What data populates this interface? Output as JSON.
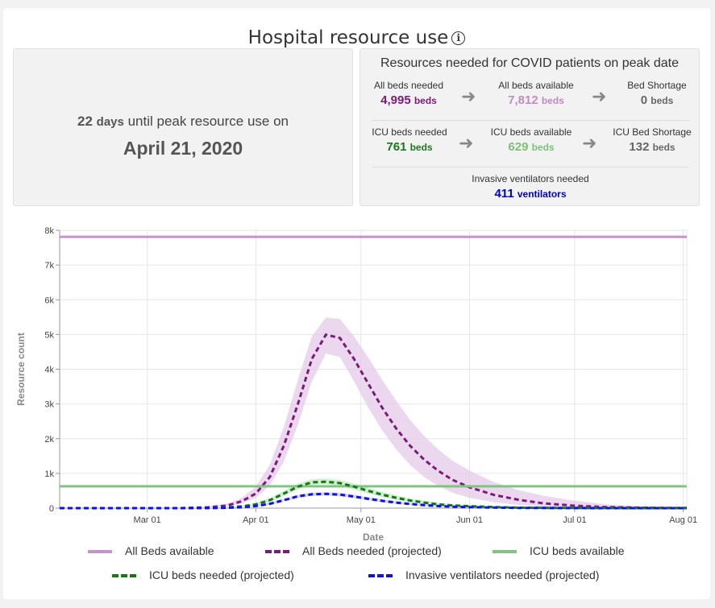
{
  "header": {
    "title": "Hospital resource use",
    "info_icon": "info-icon"
  },
  "peak": {
    "days": "22",
    "days_label": "days",
    "line_text": "until peak resource use on",
    "date": "April 21, 2020"
  },
  "resources": {
    "title": "Resources needed for COVID patients on peak date",
    "all_beds_needed": {
      "label": "All beds needed",
      "value": "4,995",
      "unit": "beds",
      "color": "#7b1a7b"
    },
    "all_beds_available": {
      "label": "All beds available",
      "value": "7,812",
      "unit": "beds",
      "color": "#c08bc4"
    },
    "bed_shortage": {
      "label": "Bed Shortage",
      "value": "0",
      "unit": "beds",
      "color": "#666666"
    },
    "icu_beds_needed": {
      "label": "ICU beds needed",
      "value": "761",
      "unit": "beds",
      "color": "#1a7a1a"
    },
    "icu_beds_available": {
      "label": "ICU beds available",
      "value": "629",
      "unit": "beds",
      "color": "#7cc07c"
    },
    "icu_bed_shortage": {
      "label": "ICU Bed Shortage",
      "value": "132",
      "unit": "beds",
      "color": "#666666"
    },
    "ventilators_needed": {
      "label": "Invasive ventilators needed",
      "value": "411",
      "unit": "ventilators",
      "color": "#0000cc"
    }
  },
  "chart_data": {
    "type": "line",
    "xlabel": "Date",
    "ylabel": "Resource count",
    "xlim": [
      "2020-02-05",
      "2020-08-02"
    ],
    "ylim": [
      0,
      8000
    ],
    "grid": true,
    "legend_position": "bottom",
    "x_ticks": [
      {
        "label": "Mar 01",
        "date": "2020-03-01"
      },
      {
        "label": "Apr 01",
        "date": "2020-04-01"
      },
      {
        "label": "May 01",
        "date": "2020-05-01"
      },
      {
        "label": "Jun 01",
        "date": "2020-06-01"
      },
      {
        "label": "Jul 01",
        "date": "2020-07-01"
      },
      {
        "label": "Aug 01",
        "date": "2020-08-01"
      }
    ],
    "y_ticks": [
      {
        "label": "0",
        "value": 0
      },
      {
        "label": "1k",
        "value": 1000
      },
      {
        "label": "2k",
        "value": 2000
      },
      {
        "label": "3k",
        "value": 3000
      },
      {
        "label": "4k",
        "value": 4000
      },
      {
        "label": "5k",
        "value": 5000
      },
      {
        "label": "6k",
        "value": 6000
      },
      {
        "label": "7k",
        "value": 7000
      },
      {
        "label": "8k",
        "value": 8000
      }
    ],
    "series": [
      {
        "name": "All Beds available",
        "style": "solid",
        "color": "#c98fd0",
        "x": [
          "2020-02-05",
          "2020-08-02"
        ],
        "y": [
          7812,
          7812
        ]
      },
      {
        "name": "All Beds needed (projected)",
        "style": "dashed",
        "color": "#7b1a7b",
        "band_color": "#e5cbe8",
        "x": [
          "2020-02-05",
          "2020-03-10",
          "2020-03-18",
          "2020-03-24",
          "2020-03-28",
          "2020-04-01",
          "2020-04-05",
          "2020-04-09",
          "2020-04-13",
          "2020-04-17",
          "2020-04-21",
          "2020-04-25",
          "2020-04-29",
          "2020-05-03",
          "2020-05-07",
          "2020-05-11",
          "2020-05-15",
          "2020-05-19",
          "2020-05-23",
          "2020-05-27",
          "2020-06-01",
          "2020-06-08",
          "2020-06-15",
          "2020-06-22",
          "2020-07-01",
          "2020-07-10",
          "2020-07-20",
          "2020-08-02"
        ],
        "y": [
          0,
          0,
          20,
          80,
          200,
          420,
          900,
          1800,
          3000,
          4300,
          4995,
          4900,
          4300,
          3600,
          2900,
          2300,
          1800,
          1400,
          1080,
          820,
          600,
          380,
          240,
          140,
          70,
          30,
          12,
          5
        ],
        "lower": [
          0,
          0,
          10,
          50,
          130,
          300,
          650,
          1350,
          2400,
          3650,
          4450,
          4350,
          3650,
          2900,
          2250,
          1700,
          1250,
          900,
          650,
          450,
          300,
          170,
          90,
          45,
          20,
          8,
          3,
          1
        ],
        "upper": [
          0,
          0,
          40,
          130,
          300,
          620,
          1250,
          2350,
          3700,
          4950,
          5490,
          5450,
          4950,
          4350,
          3700,
          3100,
          2550,
          2080,
          1700,
          1370,
          1080,
          750,
          520,
          360,
          210,
          110,
          50,
          20
        ]
      },
      {
        "name": "ICU beds available",
        "style": "solid",
        "color": "#80c480",
        "x": [
          "2020-02-05",
          "2020-08-02"
        ],
        "y": [
          629,
          629
        ]
      },
      {
        "name": "ICU beds needed (projected)",
        "style": "dashed",
        "color": "#117a11",
        "band_color": "#c6e6c6",
        "x": [
          "2020-02-05",
          "2020-03-10",
          "2020-03-18",
          "2020-03-24",
          "2020-03-28",
          "2020-04-01",
          "2020-04-05",
          "2020-04-09",
          "2020-04-13",
          "2020-04-17",
          "2020-04-21",
          "2020-04-25",
          "2020-04-29",
          "2020-05-03",
          "2020-05-07",
          "2020-05-11",
          "2020-05-15",
          "2020-05-19",
          "2020-05-23",
          "2020-05-27",
          "2020-06-01",
          "2020-06-08",
          "2020-06-15",
          "2020-06-22",
          "2020-07-01",
          "2020-07-10",
          "2020-07-20",
          "2020-08-02"
        ],
        "y": [
          0,
          0,
          5,
          20,
          50,
          110,
          230,
          420,
          620,
          745,
          761,
          720,
          620,
          500,
          390,
          300,
          220,
          160,
          110,
          80,
          55,
          30,
          15,
          8,
          4,
          2,
          1,
          0
        ],
        "lower": [
          0,
          0,
          3,
          12,
          35,
          80,
          180,
          350,
          540,
          670,
          690,
          640,
          540,
          420,
          320,
          240,
          170,
          120,
          80,
          55,
          35,
          18,
          9,
          4,
          2,
          1,
          0,
          0
        ],
        "upper": [
          0,
          0,
          8,
          30,
          70,
          150,
          290,
          500,
          710,
          830,
          850,
          810,
          710,
          590,
          470,
          370,
          280,
          210,
          150,
          110,
          80,
          45,
          25,
          13,
          7,
          3,
          1,
          0
        ]
      },
      {
        "name": "Invasive ventilators needed (projected)",
        "style": "dashed",
        "color": "#1010e8",
        "band_color": "#c8c8f2",
        "x": [
          "2020-02-05",
          "2020-03-10",
          "2020-03-18",
          "2020-03-24",
          "2020-03-28",
          "2020-04-01",
          "2020-04-05",
          "2020-04-09",
          "2020-04-13",
          "2020-04-17",
          "2020-04-21",
          "2020-04-25",
          "2020-04-29",
          "2020-05-03",
          "2020-05-07",
          "2020-05-11",
          "2020-05-15",
          "2020-05-19",
          "2020-05-23",
          "2020-05-27",
          "2020-06-01",
          "2020-06-08",
          "2020-06-15",
          "2020-06-22",
          "2020-07-01",
          "2020-07-10",
          "2020-07-20",
          "2020-08-02"
        ],
        "y": [
          0,
          0,
          3,
          10,
          25,
          60,
          125,
          230,
          340,
          400,
          411,
          390,
          335,
          270,
          210,
          160,
          120,
          85,
          60,
          42,
          30,
          16,
          8,
          4,
          2,
          1,
          0,
          0
        ],
        "lower": [
          0,
          0,
          2,
          6,
          18,
          45,
          95,
          190,
          290,
          350,
          365,
          340,
          290,
          225,
          170,
          128,
          92,
          65,
          45,
          30,
          20,
          10,
          5,
          2,
          1,
          0,
          0,
          0
        ],
        "upper": [
          0,
          0,
          5,
          15,
          35,
          80,
          160,
          270,
          390,
          450,
          460,
          440,
          385,
          315,
          250,
          195,
          150,
          110,
          80,
          58,
          42,
          24,
          12,
          6,
          3,
          1,
          0,
          0
        ]
      }
    ]
  }
}
